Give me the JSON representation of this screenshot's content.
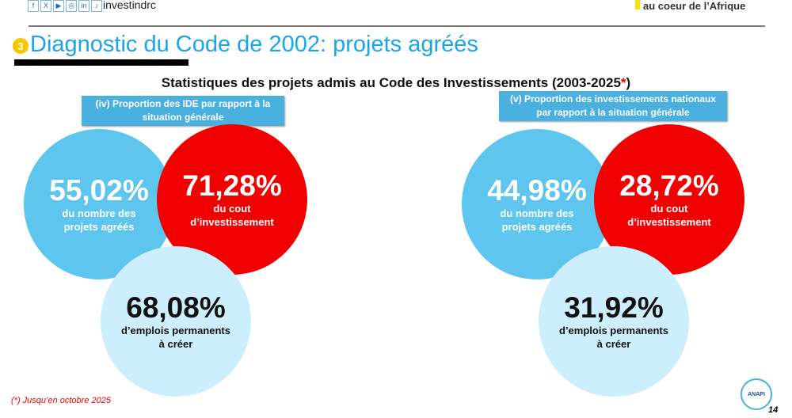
{
  "header": {
    "social_icons": [
      "facebook-icon",
      "x-icon",
      "youtube-icon",
      "instagram-icon",
      "linkedin-icon",
      "tiktok-icon"
    ],
    "social_glyphs": [
      "f",
      "X",
      "▶",
      "◎",
      "in",
      "♪"
    ],
    "brand": "investindrc",
    "tagline": "au coeur de l’Afrique"
  },
  "section_number": "3",
  "title": "Diagnostic du Code de 2002: projets agréés",
  "subtitle": "Statistiques des projets admis au Code des Investissements (2003-2025",
  "subtitle_star": "*",
  "subtitle_end": ")",
  "panels": [
    {
      "label": "(iv) Proportion des IDE par rapport à la situation générale",
      "projects": {
        "value": "55,02%",
        "desc": "du nombre des projets agréés"
      },
      "cost": {
        "value": "71,28%",
        "desc": "du cout d’investissement"
      },
      "jobs": {
        "value": "68,08%",
        "desc": "d’emplois permanents à créer"
      }
    },
    {
      "label": "(v) Proportion des investissements nationaux  par rapport à la situation générale",
      "projects": {
        "value": "44,98%",
        "desc": "du nombre des projets agréés"
      },
      "cost": {
        "value": "28,72%",
        "desc": "du cout d’investissement"
      },
      "jobs": {
        "value": "31,92%",
        "desc": "d’emplois permanents à créer"
      }
    }
  ],
  "footnote": "(*) Jusqu’en octobre 2025",
  "logo_text": "ANAPI",
  "page_number": "14",
  "colors": {
    "title": "#1aa6e6",
    "blue": "#5ec5ee",
    "red": "#f00000",
    "light": "#cdeefc"
  }
}
